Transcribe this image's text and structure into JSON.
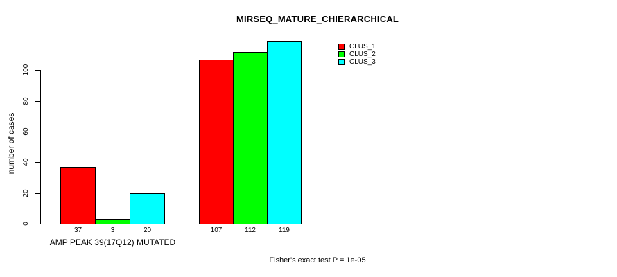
{
  "chart_data": {
    "type": "bar",
    "title": "MIRSEQ_MATURE_CHIERARCHICAL",
    "xlabel": "",
    "ylabel": "number of cases",
    "ylim": [
      0,
      119
    ],
    "yticks": [
      0,
      20,
      40,
      60,
      80,
      100
    ],
    "grid": false,
    "legend_position": "top-right-inside",
    "categories": [
      "AMP PEAK 39(17Q12) MUTATED",
      ""
    ],
    "series": [
      {
        "name": "CLUS_1",
        "color": "#ff0000",
        "values": [
          37,
          107
        ]
      },
      {
        "name": "CLUS_2",
        "color": "#00ff00",
        "values": [
          3,
          112
        ]
      },
      {
        "name": "CLUS_3",
        "color": "#00ffff",
        "values": [
          20,
          119
        ]
      }
    ],
    "bar_value_labels": true,
    "annotation": "Fisher's exact test P = 1e-05"
  }
}
